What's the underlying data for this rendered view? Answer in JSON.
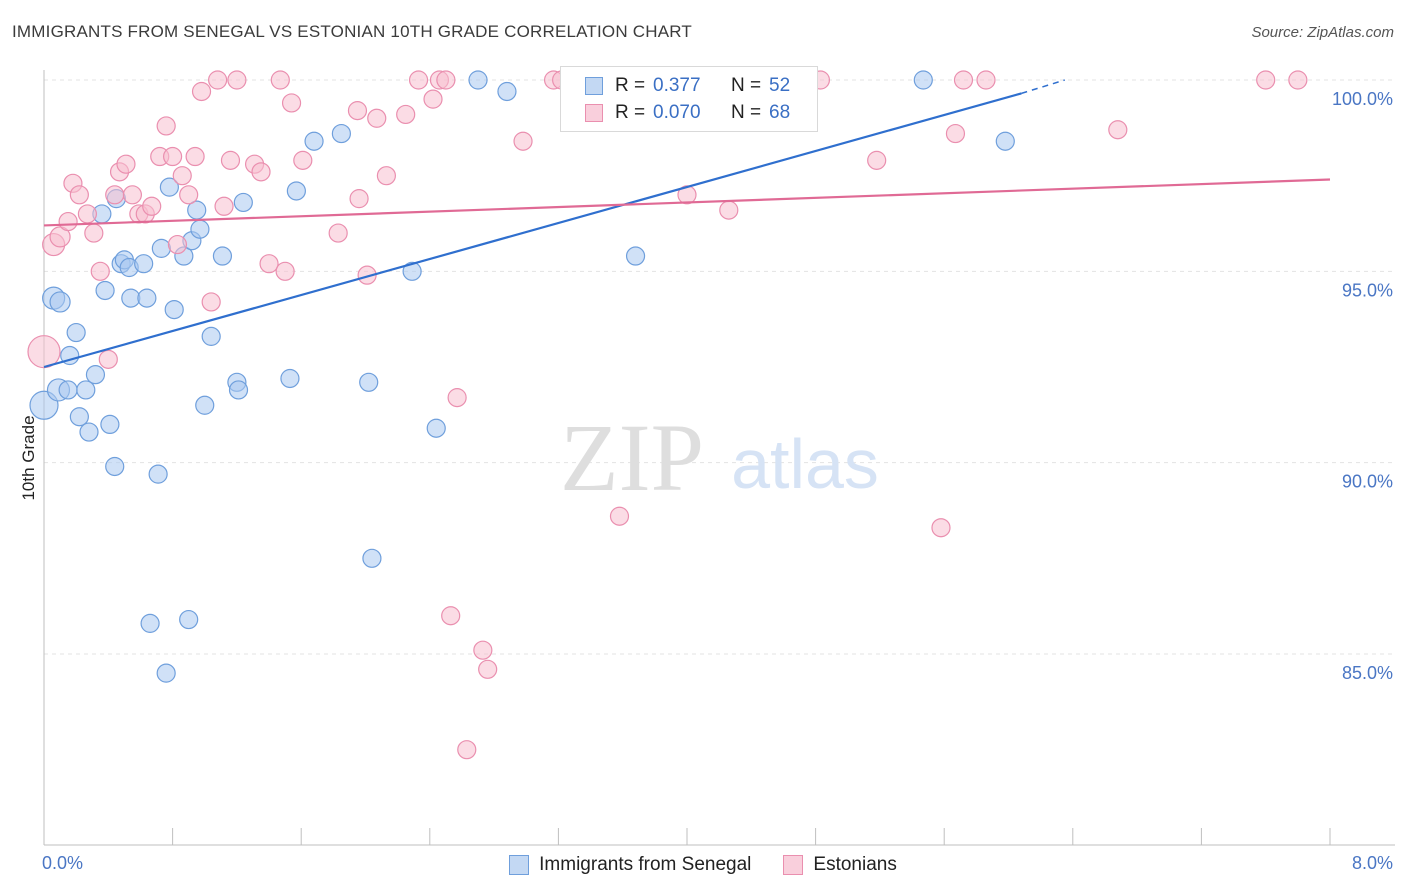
{
  "header": {
    "title": "IMMIGRANTS FROM SENEGAL VS ESTONIAN 10TH GRADE CORRELATION CHART",
    "source": "Source: ZipAtlas.com"
  },
  "legend": {
    "series1": {
      "r_label": "R =",
      "r_value": "0.377",
      "n_label": "N =",
      "n_value": "52"
    },
    "series2": {
      "r_label": "R =",
      "r_value": "0.070",
      "n_label": "N =",
      "n_value": "68"
    }
  },
  "watermark": {
    "zip": "ZIP",
    "atlas": "atlas"
  },
  "colors": {
    "blue_fill": "#a9c8f0",
    "blue_stroke": "#6f9fdc",
    "blue_line": "#2f6fce",
    "pink_fill": "#f7bfd0",
    "pink_stroke": "#ea8faf",
    "pink_line": "#e06a95",
    "tick_text": "#4a76c4",
    "grid": "#e3e3e3"
  },
  "chart_data": {
    "type": "scatter",
    "title": "IMMIGRANTS FROM SENEGAL VS ESTONIAN 10TH GRADE CORRELATION CHART",
    "xlabel": "",
    "ylabel": "10th Grade",
    "xlim": [
      0,
      8
    ],
    "ylim": [
      80.5,
      100.9
    ],
    "x_tick_labels": [
      "0.0%",
      "8.0%"
    ],
    "y_ticks": [
      85,
      90,
      95,
      100
    ],
    "y_tick_labels": [
      "85.0%",
      "90.0%",
      "95.0%",
      "100.0%"
    ],
    "grid": true,
    "legend_position": "top-center",
    "series": [
      {
        "name": "Immigrants from Senegal",
        "R": 0.377,
        "N": 52,
        "trend": {
          "x0": 0.0,
          "y0": 92.5,
          "x1": 6.08,
          "y1": 99.65,
          "dash_to_x": 6.35,
          "dash_to_y": 100.0
        },
        "points": [
          [
            0.0,
            91.5,
            14
          ],
          [
            0.06,
            94.3,
            11
          ],
          [
            0.1,
            94.2,
            10
          ],
          [
            0.09,
            91.9,
            11
          ],
          [
            0.16,
            92.8,
            9
          ],
          [
            0.15,
            91.9,
            9
          ],
          [
            0.2,
            93.4,
            9
          ],
          [
            0.22,
            91.2,
            9
          ],
          [
            0.26,
            91.9,
            9
          ],
          [
            0.28,
            90.8,
            9
          ],
          [
            0.32,
            92.3,
            9
          ],
          [
            0.36,
            96.5,
            9
          ],
          [
            0.38,
            94.5,
            9
          ],
          [
            0.41,
            91.0,
            9
          ],
          [
            0.44,
            89.9,
            9
          ],
          [
            0.45,
            96.9,
            9
          ],
          [
            0.48,
            95.2,
            9
          ],
          [
            0.5,
            95.3,
            9
          ],
          [
            0.53,
            95.1,
            9
          ],
          [
            0.54,
            94.3,
            9
          ],
          [
            0.62,
            95.2,
            9
          ],
          [
            0.64,
            94.3,
            9
          ],
          [
            0.66,
            85.8,
            9
          ],
          [
            0.71,
            89.7,
            9
          ],
          [
            0.73,
            95.6,
            9
          ],
          [
            0.76,
            84.5,
            9
          ],
          [
            0.78,
            97.2,
            9
          ],
          [
            0.81,
            94.0,
            9
          ],
          [
            0.87,
            95.4,
            9
          ],
          [
            0.9,
            85.9,
            9
          ],
          [
            0.92,
            95.8,
            9
          ],
          [
            0.95,
            96.6,
            9
          ],
          [
            0.97,
            96.1,
            9
          ],
          [
            1.0,
            91.5,
            9
          ],
          [
            1.04,
            93.3,
            9
          ],
          [
            1.11,
            95.4,
            9
          ],
          [
            1.2,
            92.1,
            9
          ],
          [
            1.21,
            91.9,
            9
          ],
          [
            1.24,
            96.8,
            9
          ],
          [
            1.53,
            92.2,
            9
          ],
          [
            1.57,
            97.1,
            9
          ],
          [
            1.68,
            98.4,
            9
          ],
          [
            1.85,
            98.6,
            9
          ],
          [
            2.02,
            92.1,
            9
          ],
          [
            2.04,
            87.5,
            9
          ],
          [
            2.29,
            95.0,
            9
          ],
          [
            2.44,
            90.9,
            9
          ],
          [
            2.7,
            100.0,
            9
          ],
          [
            2.88,
            99.7,
            9
          ],
          [
            3.68,
            95.4,
            9
          ],
          [
            5.47,
            100.0,
            9
          ],
          [
            5.98,
            98.4,
            9
          ]
        ]
      },
      {
        "name": "Estonians",
        "R": 0.07,
        "N": 68,
        "trend": {
          "x0": 0.0,
          "y0": 96.2,
          "x1": 8.0,
          "y1": 97.4
        },
        "points": [
          [
            0.0,
            92.9,
            16
          ],
          [
            0.06,
            95.7,
            11
          ],
          [
            0.1,
            95.9,
            10
          ],
          [
            0.15,
            96.3,
            9
          ],
          [
            0.18,
            97.3,
            9
          ],
          [
            0.22,
            97.0,
            9
          ],
          [
            0.27,
            96.5,
            9
          ],
          [
            0.31,
            96.0,
            9
          ],
          [
            0.35,
            95.0,
            9
          ],
          [
            0.4,
            92.7,
            9
          ],
          [
            0.44,
            97.0,
            9
          ],
          [
            0.47,
            97.6,
            9
          ],
          [
            0.51,
            97.8,
            9
          ],
          [
            0.55,
            97.0,
            9
          ],
          [
            0.59,
            96.5,
            9
          ],
          [
            0.63,
            96.5,
            9
          ],
          [
            0.67,
            96.7,
            9
          ],
          [
            0.72,
            98.0,
            9
          ],
          [
            0.76,
            98.8,
            9
          ],
          [
            0.8,
            98.0,
            9
          ],
          [
            0.83,
            95.7,
            9
          ],
          [
            0.86,
            97.5,
            9
          ],
          [
            0.9,
            97.0,
            9
          ],
          [
            0.94,
            98.0,
            9
          ],
          [
            0.98,
            99.7,
            9
          ],
          [
            1.04,
            94.2,
            9
          ],
          [
            1.08,
            100.0,
            9
          ],
          [
            1.12,
            96.7,
            9
          ],
          [
            1.16,
            97.9,
            9
          ],
          [
            1.2,
            100.0,
            9
          ],
          [
            1.31,
            97.8,
            9
          ],
          [
            1.35,
            97.6,
            9
          ],
          [
            1.4,
            95.2,
            9
          ],
          [
            1.47,
            100.0,
            9
          ],
          [
            1.5,
            95.0,
            9
          ],
          [
            1.54,
            99.4,
            9
          ],
          [
            1.61,
            97.9,
            9
          ],
          [
            1.83,
            96.0,
            9
          ],
          [
            1.95,
            99.2,
            9
          ],
          [
            1.96,
            96.9,
            9
          ],
          [
            2.01,
            94.9,
            9
          ],
          [
            2.07,
            99.0,
            9
          ],
          [
            2.13,
            97.5,
            9
          ],
          [
            2.25,
            99.1,
            9
          ],
          [
            2.33,
            100.0,
            9
          ],
          [
            2.42,
            99.5,
            9
          ],
          [
            2.46,
            100.0,
            9
          ],
          [
            2.5,
            100.0,
            9
          ],
          [
            2.53,
            86.0,
            9
          ],
          [
            2.57,
            91.7,
            9
          ],
          [
            2.63,
            82.5,
            9
          ],
          [
            2.73,
            85.1,
            9
          ],
          [
            2.76,
            84.6,
            9
          ],
          [
            2.98,
            98.4,
            9
          ],
          [
            3.17,
            100.0,
            9
          ],
          [
            3.22,
            100.0,
            9
          ],
          [
            3.58,
            88.6,
            9
          ],
          [
            4.0,
            97.0,
            9
          ],
          [
            4.26,
            96.6,
            9
          ],
          [
            4.83,
            100.0,
            9
          ],
          [
            5.18,
            97.9,
            9
          ],
          [
            5.58,
            88.3,
            9
          ],
          [
            5.67,
            98.6,
            9
          ],
          [
            5.72,
            100.0,
            9
          ],
          [
            5.86,
            100.0,
            9
          ],
          [
            6.68,
            98.7,
            9
          ],
          [
            7.6,
            100.0,
            9
          ],
          [
            7.8,
            100.0,
            9
          ]
        ]
      }
    ]
  }
}
